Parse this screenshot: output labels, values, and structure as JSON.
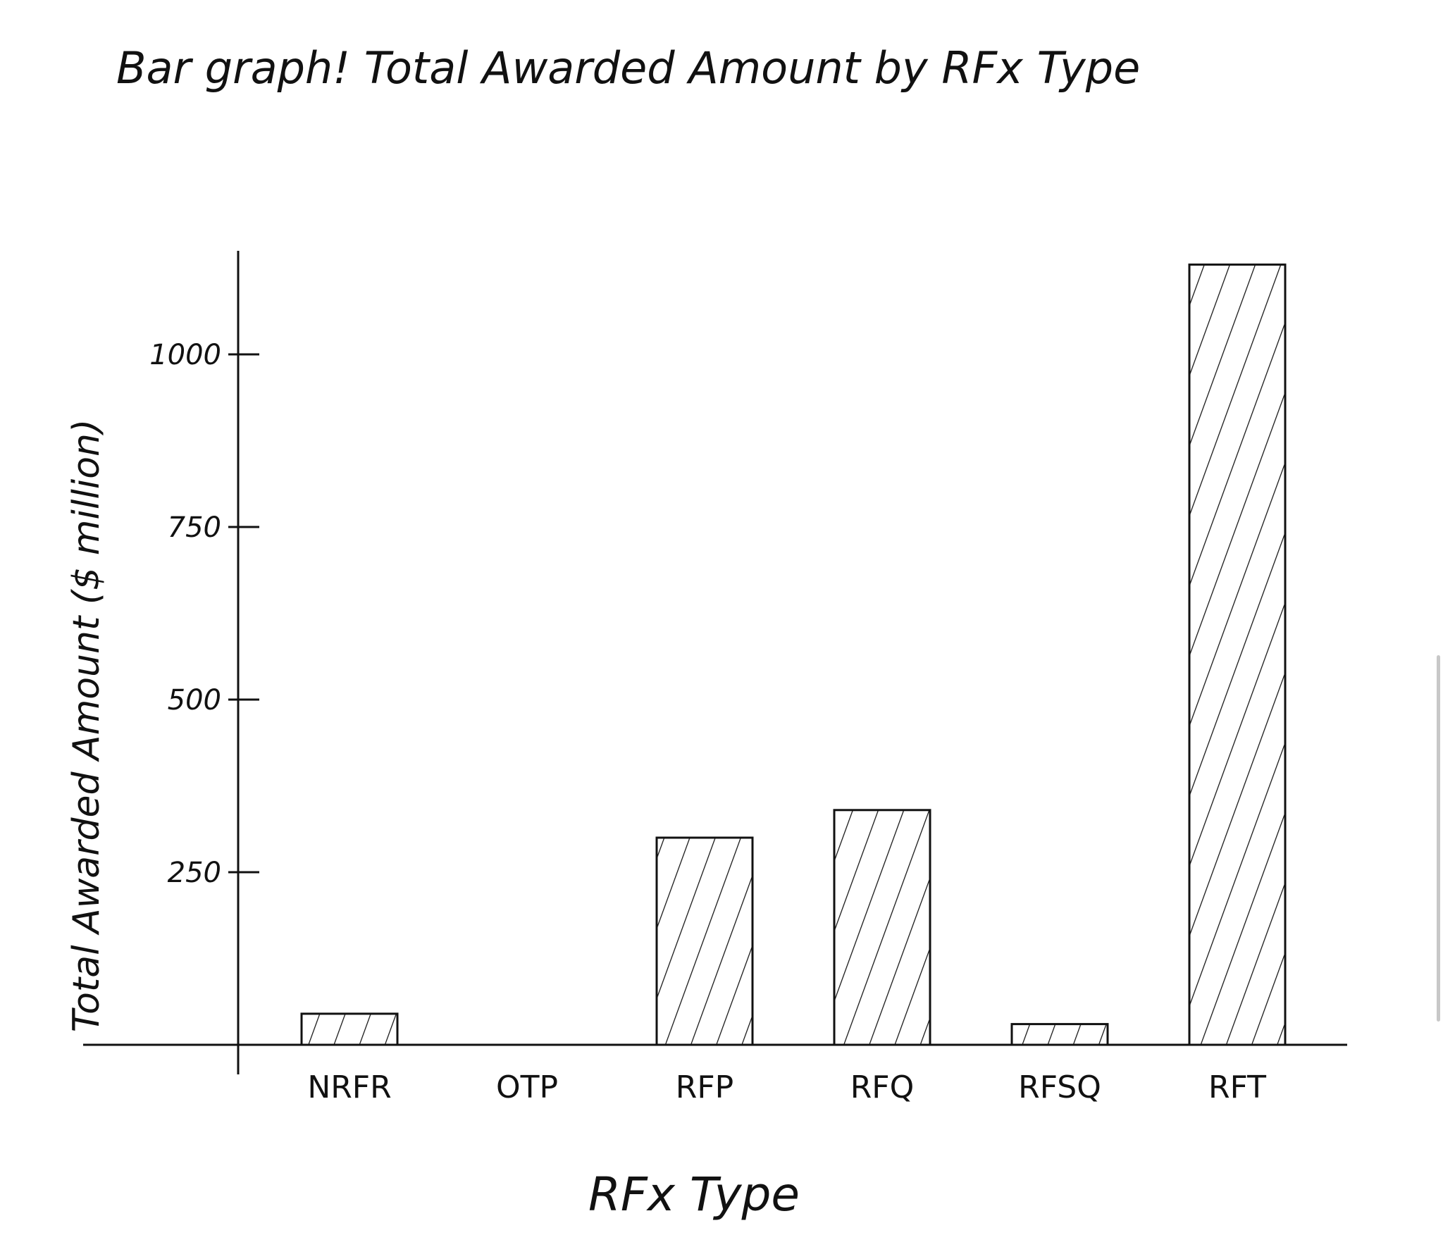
{
  "chart_data": {
    "type": "bar",
    "title": "Bar graph! Total Awarded Amount by RFx Type",
    "xlabel": "RFx Type",
    "ylabel": "Total Awarded Amount ($ million)",
    "categories": [
      "NRFR",
      "OTP",
      "RFP",
      "RFQ",
      "RFSQ",
      "RFT"
    ],
    "values": [
      45,
      0,
      300,
      340,
      30,
      1130
    ],
    "yticks": [
      250,
      500,
      750,
      1000
    ],
    "ytick_labels": [
      "250",
      "500",
      "750",
      "1000"
    ],
    "ylim": [
      0,
      1150
    ],
    "grid": false,
    "bar_fill": "hatched",
    "ink_color": "#111111"
  }
}
